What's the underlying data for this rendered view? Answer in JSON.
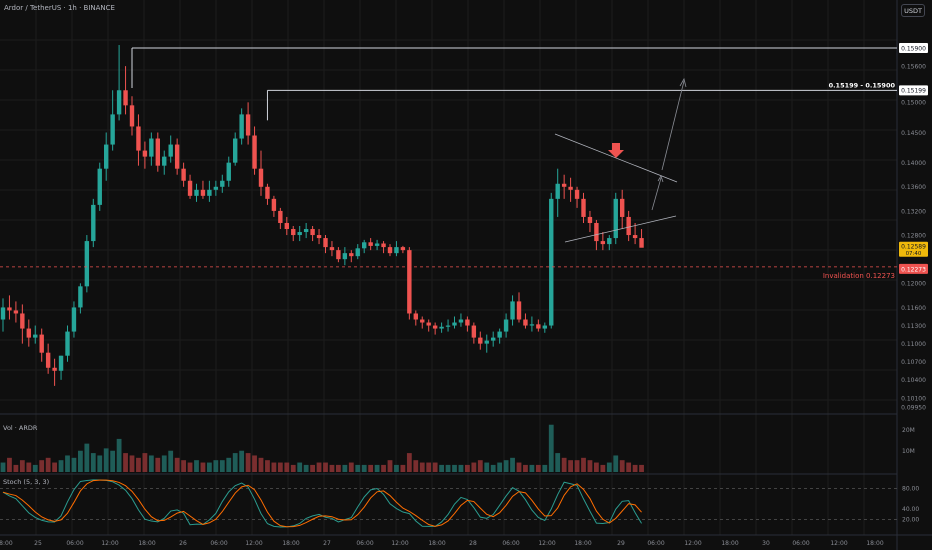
{
  "header": {
    "title": "Ardor / TetherUS · 1h · BINANCE",
    "currency": "USDT"
  },
  "colors": {
    "bg": "#0f0f0f",
    "up": "#26a69a",
    "down": "#ef5350",
    "vol_up": "#1f5d58",
    "vol_down": "#7a2e2f",
    "grid": "#1c1c1c",
    "axis_text": "#8a8d95",
    "stoch_k": "#2b9c8f",
    "stoch_d": "#ff6d00",
    "invalidation": "#ef5350",
    "line": "#d1d4dc"
  },
  "price_axis": {
    "labels": [
      "0.15900",
      "0.15600",
      "0.15199",
      "0.15000",
      "0.14500",
      "0.14000",
      "0.13600",
      "0.13200",
      "0.12800",
      "0.12589",
      "0.12273",
      "0.12000",
      "0.11600",
      "0.11300",
      "0.11000",
      "0.10700",
      "0.10400",
      "0.10100",
      "0.09950"
    ],
    "last_price": "0.12589",
    "countdown": "07:40",
    "invalidation_price": "0.12273",
    "level_1": "0.15900",
    "level_2": "0.15199"
  },
  "annotations": {
    "range_label": "0.15199 - 0.15900",
    "invalidation_label": "Invalidation 0.12273",
    "arrow_icon": "down-arrow-icon"
  },
  "volume_panel": {
    "label": "Vol · ARDR",
    "axis_labels": [
      "20M",
      "10M"
    ]
  },
  "stoch_panel": {
    "label": "Stoch (5, 3, 3)",
    "axis_labels": [
      "80.00",
      "40.00",
      "20.00"
    ]
  },
  "time_axis": [
    "18:00",
    "25",
    "06:00",
    "12:00",
    "18:00",
    "26",
    "06:00",
    "12:00",
    "18:00",
    "27",
    "06:00",
    "12:00",
    "18:00",
    "28",
    "06:00",
    "12:00",
    "18:00",
    "29",
    "06:00",
    "12:00",
    "18:00",
    "30",
    "06:00",
    "12:00",
    "18:00"
  ],
  "chart_data": {
    "type": "candlestick",
    "x": [
      "24 18:00",
      "24 19:00",
      "24 20:00",
      "24 21:00",
      "24 22:00",
      "24 23:00",
      "25 00:00",
      "25 01:00",
      "25 02:00",
      "25 03:00",
      "25 04:00",
      "25 05:00",
      "25 06:00",
      "25 07:00",
      "25 08:00",
      "25 09:00",
      "25 10:00",
      "25 11:00",
      "25 12:00",
      "25 13:00",
      "25 14:00",
      "25 15:00",
      "25 16:00",
      "25 17:00",
      "25 18:00",
      "25 19:00",
      "25 20:00",
      "25 21:00",
      "25 22:00",
      "25 23:00",
      "26 00:00",
      "26 01:00",
      "26 02:00",
      "26 03:00",
      "26 04:00",
      "26 05:00",
      "26 06:00",
      "26 07:00",
      "26 08:00",
      "26 09:00",
      "26 10:00",
      "26 11:00",
      "26 12:00",
      "26 13:00",
      "26 14:00",
      "26 15:00",
      "26 16:00",
      "26 17:00",
      "26 18:00",
      "26 19:00",
      "26 20:00",
      "26 21:00",
      "26 22:00",
      "26 23:00",
      "27 00:00",
      "27 01:00",
      "27 02:00",
      "27 03:00",
      "27 04:00",
      "27 05:00",
      "27 06:00",
      "27 07:00",
      "27 08:00",
      "27 09:00",
      "27 10:00",
      "27 11:00",
      "27 12:00",
      "27 13:00",
      "27 14:00",
      "27 15:00",
      "27 16:00",
      "27 17:00",
      "27 18:00",
      "27 19:00",
      "27 20:00",
      "27 21:00",
      "27 22:00",
      "27 23:00",
      "28 00:00",
      "28 01:00",
      "28 02:00",
      "28 03:00",
      "28 04:00",
      "28 05:00",
      "28 06:00",
      "28 07:00",
      "28 08:00",
      "28 09:00",
      "28 10:00",
      "28 11:00",
      "28 12:00",
      "28 13:00",
      "28 14:00",
      "28 15:00",
      "28 16:00",
      "28 17:00",
      "28 18:00",
      "28 19:00",
      "28 20:00",
      "28 21:00"
    ],
    "open": [
      0.114,
      0.116,
      0.1155,
      0.115,
      0.1125,
      0.111,
      0.1115,
      0.1085,
      0.106,
      0.1055,
      0.108,
      0.112,
      0.116,
      0.1195,
      0.127,
      0.133,
      0.139,
      0.143,
      0.148,
      0.152,
      0.1495,
      0.146,
      0.142,
      0.141,
      0.144,
      0.1395,
      0.141,
      0.143,
      0.139,
      0.137,
      0.1345,
      0.1355,
      0.1345,
      0.1355,
      0.136,
      0.137,
      0.14,
      0.144,
      0.148,
      0.1445,
      0.139,
      0.136,
      0.134,
      0.132,
      0.13,
      0.129,
      0.128,
      0.1285,
      0.129,
      0.128,
      0.1275,
      0.126,
      0.1255,
      0.124,
      0.125,
      0.1245,
      0.1258,
      0.1268,
      0.1262,
      0.1266,
      0.126,
      0.125,
      0.126,
      0.1255,
      0.115,
      0.114,
      0.1135,
      0.113,
      0.1125,
      0.1128,
      0.113,
      0.1135,
      0.114,
      0.113,
      0.111,
      0.11,
      0.1105,
      0.111,
      0.112,
      0.114,
      0.117,
      0.114,
      0.113,
      0.1132,
      0.1125,
      0.113,
      0.134,
      0.1365,
      0.136,
      0.1355,
      0.134,
      0.131,
      0.13,
      0.127,
      0.1265,
      0.1275,
      0.134,
      0.131,
      0.128,
      0.1275
    ],
    "high": [
      0.1175,
      0.118,
      0.117,
      0.1165,
      0.114,
      0.113,
      0.1125,
      0.11,
      0.1075,
      0.108,
      0.113,
      0.117,
      0.12,
      0.128,
      0.134,
      0.14,
      0.145,
      0.152,
      0.1595,
      0.156,
      0.151,
      0.148,
      0.1435,
      0.145,
      0.145,
      0.142,
      0.1445,
      0.144,
      0.14,
      0.138,
      0.1365,
      0.137,
      0.137,
      0.137,
      0.138,
      0.141,
      0.145,
      0.149,
      0.15,
      0.146,
      0.142,
      0.1365,
      0.1345,
      0.1325,
      0.131,
      0.1295,
      0.1295,
      0.13,
      0.1295,
      0.129,
      0.128,
      0.127,
      0.126,
      0.126,
      0.1255,
      0.1265,
      0.1272,
      0.1275,
      0.1272,
      0.127,
      0.1265,
      0.127,
      0.1262,
      0.126,
      0.1155,
      0.1145,
      0.114,
      0.1135,
      0.1135,
      0.114,
      0.1145,
      0.115,
      0.1145,
      0.1135,
      0.112,
      0.1115,
      0.112,
      0.1125,
      0.115,
      0.118,
      0.1185,
      0.115,
      0.1145,
      0.114,
      0.1135,
      0.135,
      0.139,
      0.138,
      0.1375,
      0.136,
      0.135,
      0.132,
      0.1305,
      0.1285,
      0.128,
      0.135,
      0.1355,
      0.132,
      0.13,
      0.129
    ],
    "low": [
      0.112,
      0.114,
      0.1135,
      0.11,
      0.1095,
      0.11,
      0.107,
      0.105,
      0.103,
      0.104,
      0.107,
      0.111,
      0.115,
      0.1185,
      0.126,
      0.132,
      0.137,
      0.142,
      0.147,
      0.148,
      0.1445,
      0.1395,
      0.139,
      0.1395,
      0.1385,
      0.138,
      0.14,
      0.138,
      0.136,
      0.134,
      0.1335,
      0.134,
      0.1335,
      0.1345,
      0.135,
      0.136,
      0.1395,
      0.143,
      0.143,
      0.138,
      0.1345,
      0.133,
      0.131,
      0.129,
      0.128,
      0.127,
      0.127,
      0.1275,
      0.127,
      0.1265,
      0.125,
      0.1245,
      0.1235,
      0.123,
      0.1235,
      0.124,
      0.125,
      0.1255,
      0.1255,
      0.125,
      0.1245,
      0.1245,
      0.125,
      0.114,
      0.113,
      0.1125,
      0.112,
      0.1115,
      0.1118,
      0.112,
      0.1125,
      0.1128,
      0.112,
      0.11,
      0.109,
      0.1085,
      0.1095,
      0.11,
      0.111,
      0.113,
      0.1135,
      0.1125,
      0.112,
      0.112,
      0.1118,
      0.1125,
      0.131,
      0.134,
      0.1335,
      0.1325,
      0.13,
      0.1285,
      0.1255,
      0.1255,
      0.1255,
      0.1265,
      0.129,
      0.127,
      0.1265,
      0.1265
    ],
    "close": [
      0.116,
      0.1155,
      0.115,
      0.1125,
      0.111,
      0.1115,
      0.1085,
      0.106,
      0.1055,
      0.108,
      0.112,
      0.116,
      0.1195,
      0.127,
      0.133,
      0.139,
      0.143,
      0.148,
      0.152,
      0.1495,
      0.146,
      0.142,
      0.141,
      0.144,
      0.1395,
      0.141,
      0.143,
      0.139,
      0.137,
      0.1345,
      0.1355,
      0.1345,
      0.1355,
      0.136,
      0.137,
      0.14,
      0.144,
      0.148,
      0.1445,
      0.139,
      0.136,
      0.134,
      0.132,
      0.13,
      0.129,
      0.128,
      0.1285,
      0.129,
      0.128,
      0.1275,
      0.126,
      0.1255,
      0.124,
      0.125,
      0.1245,
      0.1258,
      0.1268,
      0.1262,
      0.1266,
      0.126,
      0.125,
      0.126,
      0.1255,
      0.115,
      0.114,
      0.1135,
      0.113,
      0.1125,
      0.1128,
      0.113,
      0.1135,
      0.114,
      0.113,
      0.111,
      0.11,
      0.1105,
      0.111,
      0.112,
      0.114,
      0.117,
      0.114,
      0.113,
      0.1132,
      0.1125,
      0.113,
      0.134,
      0.1365,
      0.136,
      0.1355,
      0.134,
      0.131,
      0.13,
      0.127,
      0.1265,
      0.1275,
      0.134,
      0.131,
      0.128,
      0.1275,
      0.1259
    ],
    "volume": [
      4,
      6,
      3,
      5,
      4,
      3,
      5,
      6,
      4,
      5,
      7,
      6,
      9,
      12,
      8,
      7,
      10,
      9,
      14,
      8,
      7,
      6,
      8,
      7,
      6,
      7,
      9,
      6,
      5,
      4,
      5,
      4,
      4,
      5,
      5,
      6,
      8,
      9,
      8,
      7,
      6,
      5,
      4,
      4,
      4,
      3,
      4,
      3,
      3,
      4,
      4,
      3,
      3,
      3,
      4,
      3,
      3,
      3,
      3,
      3,
      5,
      3,
      3,
      8,
      5,
      4,
      4,
      4,
      3,
      3,
      3,
      3,
      3,
      4,
      5,
      4,
      3,
      4,
      5,
      6,
      4,
      3,
      3,
      3,
      3,
      20,
      8,
      6,
      5,
      5,
      6,
      5,
      4,
      3,
      4,
      7,
      5,
      4,
      3,
      3
    ],
    "ylim": [
      0.099,
      0.16
    ],
    "y_axis_labels": [
      "0.15900",
      "0.15600",
      "0.15199",
      "0.15000",
      "0.14500",
      "0.14000",
      "0.13600",
      "0.13200",
      "0.12800",
      "0.12273",
      "0.12000",
      "0.11600",
      "0.11300",
      "0.11000",
      "0.10700",
      "0.10400",
      "0.10100",
      "0.09950"
    ],
    "levels": [
      0.159,
      0.15199
    ],
    "invalidation": 0.12273
  }
}
